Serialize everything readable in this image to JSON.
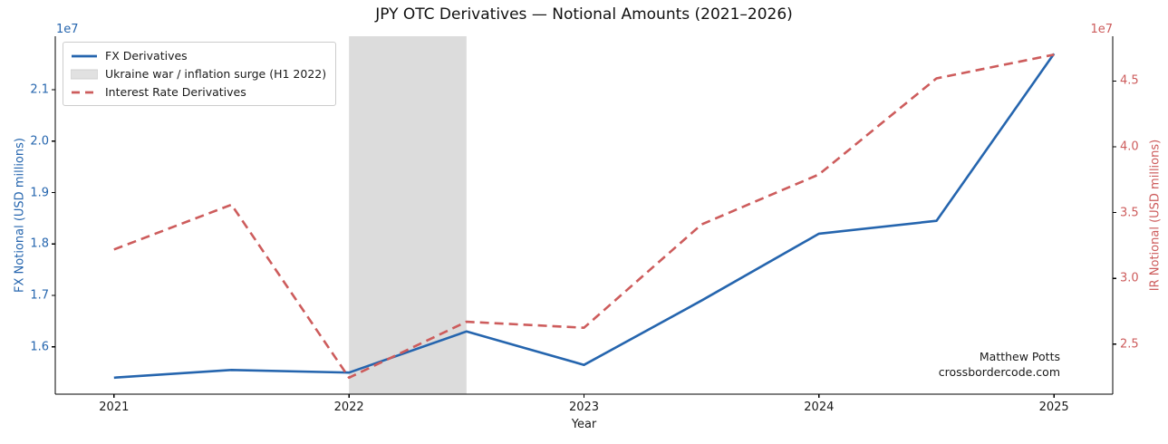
{
  "title_block": {
    "title": "JPY OTC Derivatives — Notional Amounts (2021–2026)"
  },
  "colors": {
    "fx_blue": "#2565ae",
    "ir_red": "#cd5c5c",
    "band_gray": "#dcdcdc",
    "legend_patch_gray": "#e1e1e1",
    "axis_black": "#000000",
    "legend_border": "#cccccc",
    "text_black": "#1a1a1a"
  },
  "chart_data": {
    "type": "line",
    "title": "JPY OTC Derivatives — Notional Amounts (2021–2026)",
    "xlabel": "Year",
    "ylabel_left": "FX Notional (USD millions)",
    "ylabel_right": "IR Notional (USD millions)",
    "offset_label_left": "1e7",
    "offset_label_right": "1e7",
    "grid": false,
    "legend_position": "upper left",
    "x": [
      2021,
      2021.5,
      2022,
      2022.5,
      2023,
      2023.5,
      2024,
      2024.5,
      2025
    ],
    "series": [
      {
        "name": "FX Derivatives",
        "axis": "left",
        "style": "solid",
        "color": "#2565ae",
        "values": [
          15400000,
          15550000,
          15500000,
          16300000,
          15650000,
          16900000,
          18200000,
          18450000,
          21700000
        ]
      },
      {
        "name": "Interest Rate Derivatives",
        "axis": "right",
        "style": "dashed",
        "color": "#cd5c5c",
        "values": [
          32200000,
          35600000,
          22450000,
          26700000,
          26250000,
          34100000,
          37900000,
          45200000,
          47000000
        ]
      }
    ],
    "band": {
      "label": "Ukraine war / inflation surge (H1 2022)",
      "x0": 2022,
      "x1": 2022.5,
      "color": "#dcdcdc"
    },
    "xlim": [
      2020.75,
      2025.25
    ],
    "ylim_left": [
      15080000,
      22040000
    ],
    "ylim_right": [
      21200000,
      48400000
    ],
    "xticks": [
      2021,
      2022,
      2023,
      2024,
      2025
    ],
    "yticks_left": [
      {
        "value": 16000000,
        "label": "1.6"
      },
      {
        "value": 17000000,
        "label": "1.7"
      },
      {
        "value": 18000000,
        "label": "1.8"
      },
      {
        "value": 19000000,
        "label": "1.9"
      },
      {
        "value": 20000000,
        "label": "2.0"
      },
      {
        "value": 21000000,
        "label": "2.1"
      }
    ],
    "yticks_right": [
      {
        "value": 25000000,
        "label": "2.5"
      },
      {
        "value": 30000000,
        "label": "3.0"
      },
      {
        "value": 35000000,
        "label": "3.5"
      },
      {
        "value": 40000000,
        "label": "4.0"
      },
      {
        "value": 45000000,
        "label": "4.5"
      }
    ]
  },
  "legend": {
    "items": [
      {
        "label": "FX Derivatives",
        "swatch": "line-solid",
        "color": "#2565ae"
      },
      {
        "label": "Ukraine war / inflation surge (H1 2022)",
        "swatch": "patch",
        "color": "#e1e1e1"
      },
      {
        "label": "Interest Rate Derivatives",
        "swatch": "line-dashed",
        "color": "#cd5c5c"
      }
    ]
  },
  "annotation": {
    "line1": "Matthew Potts",
    "line2": "crossbordercode.com"
  }
}
